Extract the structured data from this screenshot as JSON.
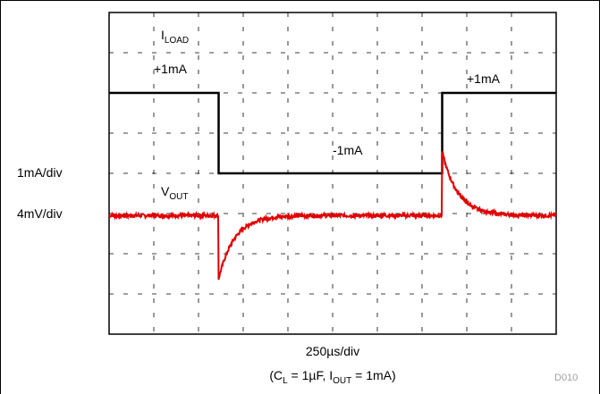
{
  "chart_data": {
    "type": "line",
    "title": "",
    "ylabels": {
      "current_scale": "1mA/div",
      "voltage_scale": "4mV/div"
    },
    "xlabel": "250µs/div",
    "conditions": {
      "prefix": "(C",
      "cl_sub": "L",
      "mid": " = 1µF, I",
      "iout_sub": "OUT",
      "suffix": " = 1mA)"
    },
    "figure_code": "D010",
    "grid": true,
    "divisions": {
      "x": 10,
      "y": 8
    },
    "xlim_div": [
      0,
      10
    ],
    "series": [
      {
        "name": "ILOAD",
        "label_main": "I",
        "label_sub": "LOAD",
        "color": "#000000",
        "unit": "mA",
        "x": [
          0,
          2.45,
          2.45,
          7.45,
          7.45,
          10
        ],
        "y": [
          1,
          1,
          -1,
          -1,
          1,
          1
        ]
      },
      {
        "name": "VOUT",
        "label_main": "V",
        "label_sub": "OUT",
        "color": "#e00000",
        "unit": "mV",
        "baseline": 0,
        "transients": [
          {
            "t": 2.45,
            "dv": -6.3,
            "tau_div": 0.35
          },
          {
            "t": 7.45,
            "dv": 6.3,
            "tau_div": 0.35
          }
        ]
      }
    ],
    "annotations": [
      "+1mA",
      "-1mA",
      "+1mA"
    ]
  }
}
